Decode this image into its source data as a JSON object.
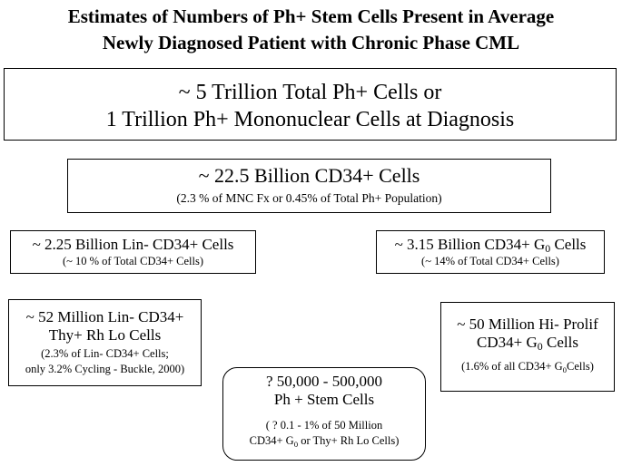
{
  "title": {
    "line1": "Estimates of Numbers of Ph+ Stem Cells Present in Average",
    "line2": "Newly Diagnosed Patient with Chronic Phase CML"
  },
  "box_total": {
    "line1": "~ 5 Trillion Total Ph+ Cells or",
    "line2": "1 Trillion Ph+ Mononuclear Cells at Diagnosis"
  },
  "box_cd34": {
    "main": "~ 22.5 Billion CD34+ Cells",
    "note": "(2.3 % of MNC Fx or  0.45% of Total Ph+ Population)"
  },
  "box_lin": {
    "main": "~ 2.25 Billion Lin- CD34+ Cells",
    "note": "(~ 10 % of Total CD34+ Cells)"
  },
  "box_g0": {
    "main_pre": "~ 3.15 Billion CD34+ G",
    "main_sub": "0",
    "main_post": " Cells",
    "note": "(~ 14% of Total CD34+ Cells)"
  },
  "box_thy": {
    "line1": "~ 52 Million Lin- CD34+",
    "line2": "Thy+ Rh Lo Cells",
    "note1": "(2.3% of Lin- CD34+ Cells;",
    "note2": "only 3.2% Cycling - Buckle, 2000)"
  },
  "box_hiprolif": {
    "line1": "~ 50 Million Hi- Prolif",
    "line2_pre": "CD34+ G",
    "line2_sub": "0",
    "line2_post": " Cells",
    "note_pre": "(1.6% of all CD34+ G",
    "note_sub": "0",
    "note_post": "Cells)"
  },
  "box_stem": {
    "line1": "? 50,000 - 500,000",
    "line2": "Ph + Stem Cells",
    "note1": "( ? 0.1 - 1% of 50 Million",
    "note2_pre": "CD34+ G",
    "note2_sub": "0",
    "note2_post": " or Thy+ Rh Lo  Cells)"
  }
}
